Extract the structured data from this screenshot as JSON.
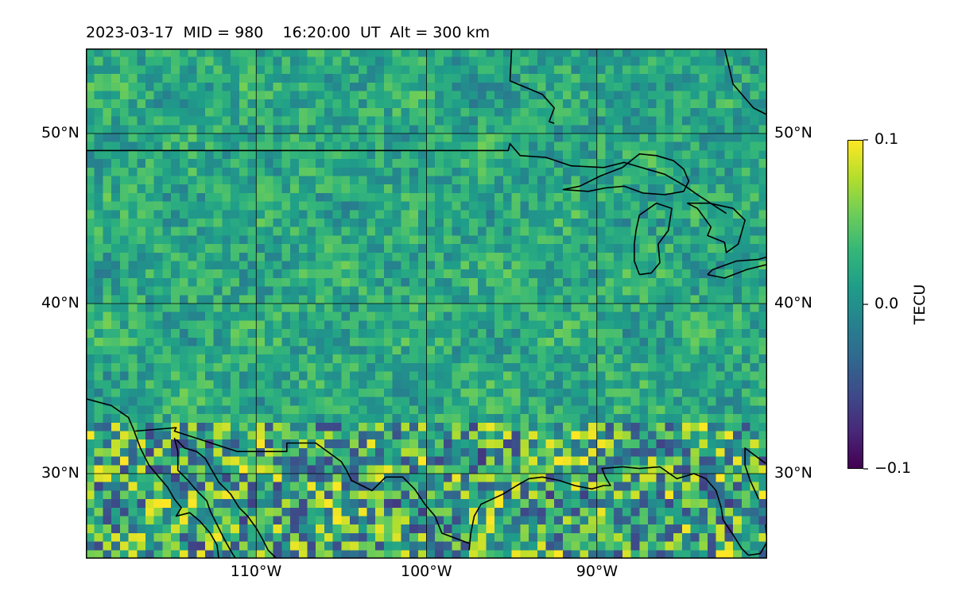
{
  "chart_data": {
    "type": "heatmap",
    "title": "2023-03-17  MID = 980    16:20:00  UT  Alt = 300 km",
    "projection": "map",
    "lon_range": [
      -120,
      -80
    ],
    "lat_range": [
      25,
      55
    ],
    "gridlines": true,
    "lat_ticks": [
      {
        "value": 50,
        "label": "50°N"
      },
      {
        "value": 40,
        "label": "40°N"
      },
      {
        "value": 30,
        "label": "30°N"
      }
    ],
    "lon_ticks": [
      {
        "value": -110,
        "label": "110°W"
      },
      {
        "value": -100,
        "label": "100°W"
      },
      {
        "value": -90,
        "label": "90°W"
      }
    ],
    "colorbar": {
      "label": "TECU",
      "colormap": "viridis",
      "vmin": -0.1,
      "vmax": 0.1,
      "ticks": [
        {
          "value": 0.1,
          "label": "0.1"
        },
        {
          "value": 0.0,
          "label": "0.0"
        },
        {
          "value": -0.1,
          "label": "−0.1"
        }
      ]
    },
    "cell_size_deg": 0.5,
    "field_description_values": {
      "background_mean": 0.02,
      "noise_amplitude": 0.03,
      "southern_region_amplitude": 0.08,
      "southern_region_below_lat": 33
    },
    "coastlines": [
      [
        [
          -120,
          34.4
        ],
        [
          -118.5,
          34
        ],
        [
          -117.5,
          33.3
        ],
        [
          -117.2,
          32.6
        ],
        [
          -116.8,
          31.5
        ],
        [
          -116.3,
          30.5
        ],
        [
          -115.8,
          29.9
        ],
        [
          -115.2,
          29.2
        ],
        [
          -114.8,
          28.5
        ],
        [
          -114.4,
          28
        ],
        [
          -114.7,
          27.5
        ],
        [
          -113.9,
          27.7
        ],
        [
          -113.3,
          27.2
        ],
        [
          -112.7,
          26.5
        ],
        [
          -112.3,
          25.8
        ],
        [
          -112.2,
          25
        ]
      ],
      [
        [
          -114.7,
          32
        ],
        [
          -114.2,
          31.5
        ],
        [
          -113.5,
          31.3
        ],
        [
          -113,
          30.9
        ],
        [
          -112.2,
          29.5
        ],
        [
          -111.5,
          28.8
        ],
        [
          -111,
          28
        ],
        [
          -110.5,
          27.5
        ],
        [
          -110,
          26.8
        ],
        [
          -109.6,
          26.1
        ],
        [
          -109.3,
          25.5
        ],
        [
          -108.8,
          25
        ]
      ],
      [
        [
          -114.8,
          32.1
        ],
        [
          -114.6,
          31.3
        ],
        [
          -114.6,
          30.2
        ],
        [
          -114,
          29.6
        ],
        [
          -113.4,
          28.9
        ],
        [
          -112.9,
          28.4
        ],
        [
          -112.7,
          27.8
        ],
        [
          -112.3,
          27
        ],
        [
          -111.9,
          26.2
        ],
        [
          -111.4,
          25.3
        ],
        [
          -111.2,
          25
        ]
      ],
      [
        [
          -97.5,
          25.5
        ],
        [
          -97.4,
          26.5
        ],
        [
          -97.2,
          27.5
        ],
        [
          -96.8,
          28.2
        ],
        [
          -95.5,
          28.8
        ],
        [
          -94.7,
          29.3
        ],
        [
          -94,
          29.7
        ],
        [
          -93.2,
          29.8
        ],
        [
          -92.2,
          29.6
        ],
        [
          -91.3,
          29.3
        ],
        [
          -90.3,
          29.1
        ],
        [
          -89.6,
          29.3
        ],
        [
          -89.2,
          29.3
        ],
        [
          -89.5,
          29.8
        ],
        [
          -89.7,
          30.3
        ],
        [
          -88.5,
          30.4
        ],
        [
          -87.5,
          30.3
        ],
        [
          -86.3,
          30.4
        ],
        [
          -85.3,
          29.7
        ],
        [
          -84.3,
          30
        ],
        [
          -83.6,
          29.7
        ],
        [
          -83,
          29
        ],
        [
          -82.7,
          28
        ],
        [
          -82.6,
          27.3
        ],
        [
          -82,
          26.4
        ],
        [
          -81.5,
          25.6
        ],
        [
          -81.1,
          25.2
        ]
      ],
      [
        [
          -81.1,
          25.2
        ],
        [
          -80.4,
          25.3
        ],
        [
          -80,
          26
        ],
        [
          -80.1,
          27
        ]
      ],
      [
        [
          -80.1,
          30.6
        ],
        [
          -80.5,
          30.9
        ],
        [
          -81.3,
          31.5
        ],
        [
          -81.3,
          30.5
        ],
        [
          -81,
          29.6
        ],
        [
          -80.5,
          28.5
        ]
      ]
    ],
    "borders": [
      [
        [
          -120,
          49
        ],
        [
          -95.2,
          49
        ],
        [
          -95.1,
          49.4
        ],
        [
          -94.5,
          48.7
        ],
        [
          -93,
          48.6
        ],
        [
          -91.5,
          48.1
        ],
        [
          -89.6,
          48
        ],
        [
          -88.4,
          48.3
        ],
        [
          -86,
          47.6
        ],
        [
          -84.8,
          46.9
        ],
        [
          -84.1,
          46.4
        ],
        [
          -82.4,
          45.3
        ]
      ],
      [
        [
          -117.1,
          32.5
        ],
        [
          -114.7,
          32.7
        ],
        [
          -114.8,
          32.5
        ],
        [
          -111.1,
          31.3
        ],
        [
          -108.2,
          31.3
        ],
        [
          -108.2,
          31.8
        ],
        [
          -106.5,
          31.8
        ],
        [
          -105,
          30.7
        ],
        [
          -104.7,
          30.2
        ],
        [
          -104.4,
          29.6
        ],
        [
          -103.2,
          29
        ],
        [
          -102.9,
          29.3
        ],
        [
          -102.4,
          29.8
        ],
        [
          -101.4,
          29.8
        ],
        [
          -100.7,
          29.1
        ],
        [
          -100.1,
          28.2
        ],
        [
          -99.5,
          27.5
        ],
        [
          -99.1,
          26.5
        ],
        [
          -97.5,
          25.9
        ]
      ]
    ],
    "lakes": [
      [
        [
          -92,
          46.7
        ],
        [
          -91,
          46.9
        ],
        [
          -89.8,
          47.5
        ],
        [
          -88.5,
          48
        ],
        [
          -87.5,
          48.8
        ],
        [
          -86.5,
          48.7
        ],
        [
          -85.5,
          48.4
        ],
        [
          -84.9,
          47.9
        ],
        [
          -84.6,
          47.2
        ],
        [
          -84.9,
          46.6
        ],
        [
          -86,
          46.4
        ],
        [
          -87.3,
          46.5
        ],
        [
          -88.4,
          46.9
        ],
        [
          -89.5,
          46.8
        ],
        [
          -90.5,
          46.6
        ],
        [
          -92,
          46.7
        ]
      ],
      [
        [
          -87.5,
          41.7
        ],
        [
          -87.8,
          42.5
        ],
        [
          -87.8,
          43.5
        ],
        [
          -87.7,
          44.3
        ],
        [
          -87.5,
          45.2
        ],
        [
          -86.5,
          45.9
        ],
        [
          -85.6,
          45.6
        ],
        [
          -85.8,
          44.3
        ],
        [
          -86.4,
          43.5
        ],
        [
          -86.3,
          42.4
        ],
        [
          -86.8,
          41.8
        ],
        [
          -87.5,
          41.7
        ]
      ],
      [
        [
          -84.7,
          45.9
        ],
        [
          -83.4,
          45.9
        ],
        [
          -82,
          45.6
        ],
        [
          -81.3,
          44.9
        ],
        [
          -81.5,
          44.2
        ],
        [
          -81.7,
          43.5
        ],
        [
          -82.4,
          43
        ],
        [
          -82.5,
          43.6
        ],
        [
          -83.5,
          44
        ],
        [
          -83.3,
          44.5
        ],
        [
          -84.1,
          45.6
        ],
        [
          -84.7,
          45.9
        ]
      ],
      [
        [
          -83.5,
          41.7
        ],
        [
          -82.5,
          41.5
        ],
        [
          -81.2,
          42
        ],
        [
          -80,
          42.3
        ],
        [
          -79.5,
          42.9
        ],
        [
          -80.5,
          42.6
        ],
        [
          -81.8,
          42.5
        ],
        [
          -83.2,
          42
        ],
        [
          -83.5,
          41.7
        ]
      ],
      [
        [
          -79.8,
          43.2
        ],
        [
          -79,
          43.3
        ],
        [
          -77.7,
          43.3
        ],
        [
          -77,
          43.6
        ],
        [
          -78.5,
          43.9
        ],
        [
          -79.8,
          43.2
        ]
      ],
      [
        [
          -80,
          42.3
        ],
        [
          -79,
          42.9
        ],
        [
          -78.2,
          43.3
        ],
        [
          -77,
          43.3
        ]
      ]
    ],
    "hudson_bay": [
      [
        [
          -95,
          55
        ],
        [
          -95.1,
          53.1
        ],
        [
          -93.2,
          52.3
        ],
        [
          -92.5,
          51.5
        ],
        [
          -92.8,
          50.7
        ],
        [
          -92.5,
          50.6
        ]
      ],
      [
        [
          -80,
          51.1
        ],
        [
          -80.8,
          51.5
        ],
        [
          -82,
          52.9
        ],
        [
          -82.5,
          55
        ],
        [
          -80,
          55
        ]
      ]
    ]
  }
}
